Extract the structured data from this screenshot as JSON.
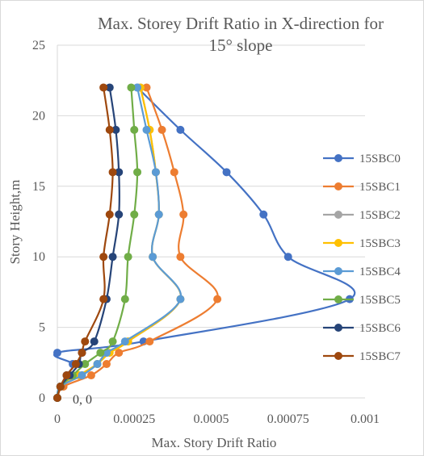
{
  "chart_data": {
    "type": "scatter",
    "title_line1": "Max. Storey Drift Ratio in X-direction for",
    "title_line2": "15° slope",
    "xlabel": "Max. Story Drift Ratio",
    "ylabel": "Story Height,m",
    "xlim": [
      0,
      0.001
    ],
    "ylim": [
      0,
      25
    ],
    "x_ticks": [
      "0",
      "0.00025",
      "0.0005",
      "0.00075",
      "0.001"
    ],
    "x_tick_values": [
      0,
      0.00025,
      0.0005,
      0.00075,
      0.001
    ],
    "y_ticks": [
      "0",
      "5",
      "10",
      "15",
      "20",
      "25"
    ],
    "y_tick_values": [
      0,
      5,
      10,
      15,
      20,
      25
    ],
    "grid": "horizontal",
    "legend_position": "right",
    "annotation": "0, 0",
    "series": [
      {
        "name": "15SBC0",
        "color": "#4472c4",
        "points": [
          [
            0,
            0
          ],
          [
            1e-05,
            0.8
          ],
          [
            3e-05,
            1.6
          ],
          [
            5e-05,
            2.4
          ],
          [
            0.0,
            3.2
          ],
          [
            0.00028,
            4.0
          ],
          [
            0.00095,
            7.0
          ],
          [
            0.00075,
            10.0
          ],
          [
            0.00067,
            13.0
          ],
          [
            0.00055,
            16.0
          ],
          [
            0.0004,
            19.0
          ],
          [
            0.00026,
            22.0
          ]
        ]
      },
      {
        "name": "15SBC1",
        "color": "#ed7d31",
        "points": [
          [
            0,
            0
          ],
          [
            2e-05,
            0.8
          ],
          [
            0.00011,
            1.6
          ],
          [
            0.00016,
            2.4
          ],
          [
            0.0002,
            3.2
          ],
          [
            0.0003,
            4.0
          ],
          [
            0.00052,
            7.0
          ],
          [
            0.0004,
            10.0
          ],
          [
            0.00041,
            13.0
          ],
          [
            0.00038,
            16.0
          ],
          [
            0.00034,
            19.0
          ],
          [
            0.00029,
            22.0
          ]
        ]
      },
      {
        "name": "15SBC2",
        "color": "#a5a5a5",
        "points": [
          [
            0,
            0
          ],
          [
            1e-05,
            0.8
          ],
          [
            8e-05,
            1.6
          ],
          [
            0.00013,
            2.4
          ],
          [
            0.00016,
            3.2
          ],
          [
            0.00023,
            4.0
          ],
          [
            0.0004,
            7.0
          ],
          [
            0.00031,
            10.0
          ],
          [
            0.00033,
            13.0
          ],
          [
            0.00032,
            16.0
          ],
          [
            0.0003,
            19.0
          ],
          [
            0.00027,
            22.0
          ]
        ]
      },
      {
        "name": "15SBC3",
        "color": "#ffc000",
        "points": [
          [
            0,
            0
          ],
          [
            1e-05,
            0.8
          ],
          [
            7e-05,
            1.6
          ],
          [
            0.00013,
            2.4
          ],
          [
            0.00017,
            3.2
          ],
          [
            0.00023,
            4.0
          ],
          [
            0.0004,
            7.0
          ],
          [
            0.00031,
            10.0
          ],
          [
            0.00033,
            13.0
          ],
          [
            0.00032,
            16.0
          ],
          [
            0.0003,
            19.0
          ],
          [
            0.00027,
            22.0
          ]
        ]
      },
      {
        "name": "15SBC4",
        "color": "#5b9bd5",
        "points": [
          [
            0,
            0
          ],
          [
            1e-05,
            0.8
          ],
          [
            8e-05,
            1.6
          ],
          [
            0.00013,
            2.4
          ],
          [
            0.00016,
            3.2
          ],
          [
            0.00022,
            4.0
          ],
          [
            0.0004,
            7.0
          ],
          [
            0.00031,
            10.0
          ],
          [
            0.00033,
            13.0
          ],
          [
            0.00032,
            16.0
          ],
          [
            0.00029,
            19.0
          ],
          [
            0.00026,
            22.0
          ]
        ]
      },
      {
        "name": "15SBC5",
        "color": "#70ad47",
        "points": [
          [
            0,
            0
          ],
          [
            1e-05,
            0.8
          ],
          [
            5e-05,
            1.6
          ],
          [
            9e-05,
            2.4
          ],
          [
            0.00014,
            3.2
          ],
          [
            0.00018,
            4.0
          ],
          [
            0.00022,
            7.0
          ],
          [
            0.00023,
            10.0
          ],
          [
            0.00025,
            13.0
          ],
          [
            0.00026,
            16.0
          ],
          [
            0.00025,
            19.0
          ],
          [
            0.00024,
            22.0
          ]
        ]
      },
      {
        "name": "15SBC6",
        "color": "#264478",
        "points": [
          [
            0,
            0
          ],
          [
            1e-05,
            0.8
          ],
          [
            4e-05,
            1.6
          ],
          [
            7e-05,
            2.4
          ],
          [
            8e-05,
            3.2
          ],
          [
            0.00012,
            4.0
          ],
          [
            0.00016,
            7.0
          ],
          [
            0.00018,
            10.0
          ],
          [
            0.0002,
            13.0
          ],
          [
            0.0002,
            16.0
          ],
          [
            0.00019,
            19.0
          ],
          [
            0.00017,
            22.0
          ]
        ]
      },
      {
        "name": "15SBC7",
        "color": "#9e480e",
        "points": [
          [
            0,
            0
          ],
          [
            1e-05,
            0.8
          ],
          [
            3e-05,
            1.6
          ],
          [
            6e-05,
            2.4
          ],
          [
            8e-05,
            3.2
          ],
          [
            9e-05,
            4.0
          ],
          [
            0.00015,
            7.0
          ],
          [
            0.00015,
            10.0
          ],
          [
            0.00017,
            13.0
          ],
          [
            0.00018,
            16.0
          ],
          [
            0.00017,
            19.0
          ],
          [
            0.00015,
            22.0
          ]
        ]
      }
    ]
  }
}
